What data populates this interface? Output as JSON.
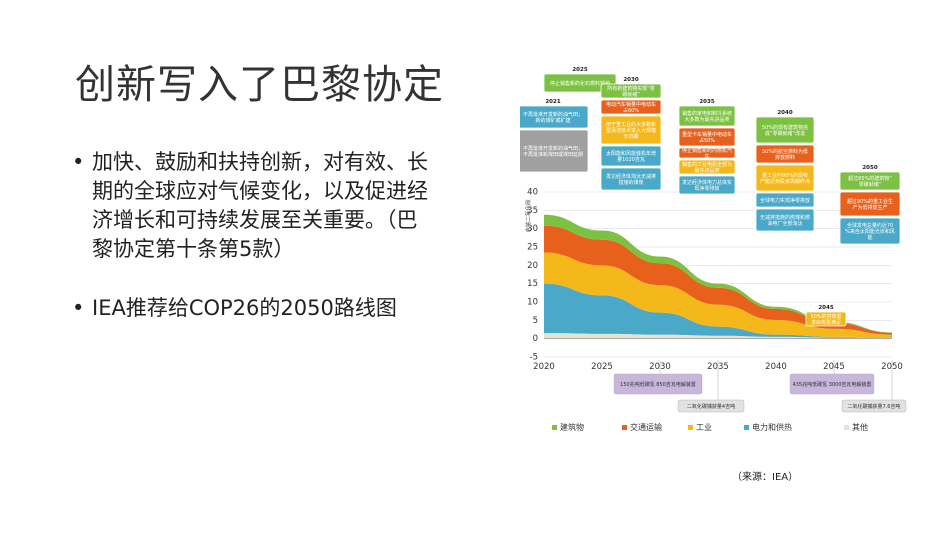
{
  "slide": {
    "title": "创新写入了巴黎协定",
    "bullets": [
      "加快、鼓励和扶持创新，对有效、长期的全球应对气候变化，以及促进经济增长和可持续发展至关重要。（巴黎协定第十条第5款）",
      "IEA推荐给COP26的2050路线图"
    ],
    "source": "（来源：IEA）"
  },
  "chart_data": {
    "type": "area",
    "ylabel": "吉吨二氧化碳",
    "x": [
      2020,
      2025,
      2030,
      2035,
      2040,
      2045,
      2050
    ],
    "ylim": [
      -5,
      40
    ],
    "yticks": [
      -5,
      0,
      5,
      10,
      15,
      20,
      25,
      30,
      35,
      40
    ],
    "grid": true,
    "legend_position": "bottom",
    "series": [
      {
        "name": "其他",
        "color": "#e8e2d0",
        "values": [
          1.5,
          1.3,
          1.1,
          0.8,
          0.5,
          0.3,
          0.2
        ]
      },
      {
        "name": "电力和供热",
        "color": "#4aa9c9",
        "values": [
          13.5,
          10.5,
          6.0,
          2.5,
          0.6,
          0.2,
          0.1
        ]
      },
      {
        "name": "工业",
        "color": "#f5b81b",
        "values": [
          8.5,
          8.2,
          7.5,
          6.0,
          4.0,
          2.2,
          0.8
        ]
      },
      {
        "name": "交通运输",
        "color": "#e8611c",
        "values": [
          7.3,
          7.0,
          6.0,
          4.6,
          3.0,
          1.6,
          0.5
        ]
      },
      {
        "name": "建筑物",
        "color": "#7dc142",
        "values": [
          3.0,
          2.5,
          1.8,
          1.1,
          0.6,
          0.3,
          0.1
        ]
      }
    ],
    "milestones": [
      {
        "year": "2021",
        "items": [
          {
            "text": "不再批准开发新的油气田；新的煤矿或扩建",
            "color": "#4aa9c9"
          },
          {
            "text": "不再批准开发新的油气田；不再批准新煤田或煤田延期",
            "color": "#a0a0a0"
          }
        ]
      },
      {
        "year": "2025",
        "items": [
          {
            "text": "停止销售新的化石燃料锅炉",
            "color": "#7dc142"
          }
        ]
      },
      {
        "year": "2030",
        "items": [
          {
            "text": "所有新建筑物实现“零碳就绪”",
            "color": "#7dc142"
          },
          {
            "text": "电动汽车销量中电动车占60%",
            "color": "#e8611c"
          },
          {
            "text": "用于重工业的大多数新型清洁技术进入大规模示范期",
            "color": "#f5b81b"
          },
          {
            "text": "太阳能和风能装机年增量1020吉瓦",
            "color": "#4aa9c9"
          },
          {
            "text": "发达经济体淘汰无减排措施的煤炭",
            "color": "#4aa9c9"
          }
        ]
      },
      {
        "year": "2035",
        "items": [
          {
            "text": "销售的家电和制冷系统大多数为最先进品类",
            "color": "#7dc142"
          },
          {
            "text": "重型卡车销量中电动车占50%",
            "color": "#e8611c"
          },
          {
            "text": "停止销售新的内燃机汽车",
            "color": "#e8611c"
          },
          {
            "text": "销售的工业电机全部为最先进品类",
            "color": "#f5b81b"
          },
          {
            "text": "发达经济体电力总体实现净零排放",
            "color": "#4aa9c9"
          }
        ]
      },
      {
        "year": "2040",
        "items": [
          {
            "text": "50%的现有建筑物完成“零碳就绪”改造",
            "color": "#7dc142"
          },
          {
            "text": "50%的航空燃料为低排放燃料",
            "color": "#e8611c"
          },
          {
            "text": "重工业约90%的现有产能达到投资周期终点",
            "color": "#f5b81b"
          },
          {
            "text": "全球电力实现净零排放",
            "color": "#4aa9c9"
          },
          {
            "text": "无减排措施的燃煤和燃油电厂全部淘汰",
            "color": "#4aa9c9"
          }
        ]
      },
      {
        "year": "2045",
        "items": [
          {
            "text": "50%的供热需求由热泵满足",
            "color": "#f5b81b"
          }
        ]
      },
      {
        "year": "2050",
        "items": [
          {
            "text": "超过85%的建筑物“零碳就绪”",
            "color": "#7dc142"
          },
          {
            "text": "超过90%的重工业生产为低排放生产",
            "color": "#e8611c"
          },
          {
            "text": "全球发电总量约近70%来自太阳能光伏和风能",
            "color": "#4aa9c9"
          }
        ]
      }
    ],
    "bottom_annotations": [
      {
        "text": "150兆吨低碳氢 850吉瓦电解装置",
        "color": "#c9b6dc"
      },
      {
        "text": "二氧化碳捕获量4吉吨",
        "color": "#e2e2e2"
      },
      {
        "text": "435兆吨低碳氢 3000吉瓦电解装置",
        "color": "#c9b6dc"
      },
      {
        "text": "二氧化碳捕获量7.6吉吨",
        "color": "#e2e2e2"
      }
    ]
  }
}
